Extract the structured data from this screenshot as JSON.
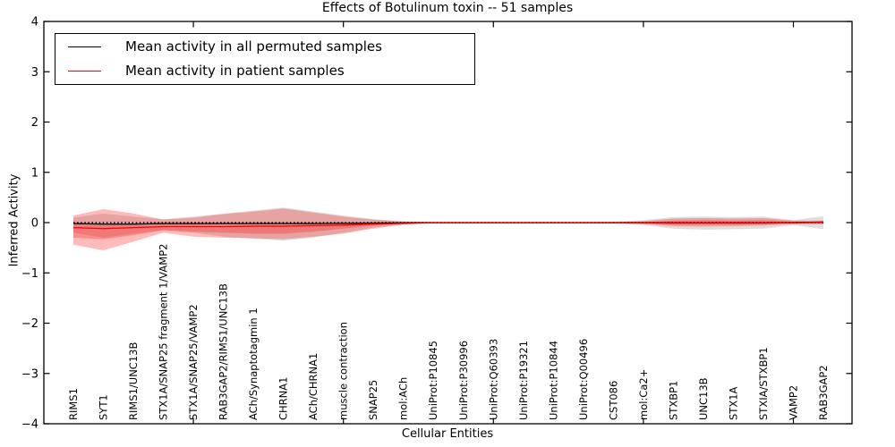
{
  "chart_data": {
    "type": "line",
    "title": "Effects of Botulinum toxin -- 51 samples",
    "xlabel": "Cellular Entities",
    "ylabel": "Inferred Activity",
    "ylim": [
      -4,
      4
    ],
    "yticks": [
      -4,
      -3,
      -2,
      -1,
      0,
      1,
      2,
      3,
      4
    ],
    "xtick_indices": [
      4,
      9,
      14,
      19,
      24
    ],
    "grid": false,
    "legend_position": "upper left",
    "background_color": "#ffffff",
    "frame_color": "#000000",
    "zero_reference_line": {
      "value": 0,
      "style": "dotted",
      "color": "#000000"
    },
    "categories": [
      "RIMS1",
      "SYT1",
      "RIMS1/UNC13B",
      "STX1A/SNAP25 fragment 1/VAMP2",
      "STX1A/SNAP25/VAMP2",
      "RAB3GAP2/RIMS1/UNC13B",
      "ACh/Synaptotagmin 1",
      "CHRNA1",
      "ACh/CHRNA1",
      "muscle contraction",
      "SNAP25",
      "mol:ACh",
      "UniProt:P10845",
      "UniProt:P30996",
      "UniProt:Q60393",
      "UniProt:P19321",
      "UniProt:P10844",
      "UniProt:Q00496",
      "CST086",
      "mol:Ca2+",
      "STXBP1",
      "UNC13B",
      "STX1A",
      "STXIA/STXBP1",
      "VAMP2",
      "RAB3GAP2"
    ],
    "series": [
      {
        "name": "Mean activity in all permuted samples",
        "color": "#000000",
        "values": [
          -0.02,
          -0.03,
          -0.03,
          -0.02,
          -0.02,
          -0.02,
          -0.02,
          -0.02,
          -0.02,
          -0.015,
          -0.01,
          -0.005,
          0,
          0,
          0,
          0,
          0,
          0,
          0,
          0,
          -0.005,
          -0.005,
          -0.005,
          -0.005,
          0,
          0.01
        ]
      },
      {
        "name": "Mean activity in patient samples",
        "color": "#ff0000",
        "values": [
          -0.1,
          -0.12,
          -0.1,
          -0.08,
          -0.08,
          -0.08,
          -0.07,
          -0.07,
          -0.06,
          -0.05,
          -0.03,
          -0.015,
          -0.005,
          -0.005,
          -0.005,
          -0.005,
          -0.005,
          -0.005,
          -0.005,
          -0.005,
          -0.01,
          -0.01,
          -0.01,
          -0.01,
          -0.005,
          0.01
        ]
      }
    ],
    "bands": [
      {
        "name": "permuted-samples-range",
        "color": "#000000",
        "opacity": 0.13,
        "upper": [
          0.1,
          0.18,
          0.12,
          0.07,
          0.12,
          0.18,
          0.24,
          0.3,
          0.22,
          0.14,
          0.07,
          0.03,
          0.01,
          0.01,
          0.01,
          0.01,
          0.01,
          0.01,
          0.015,
          0.05,
          0.11,
          0.12,
          0.11,
          0.12,
          0.05,
          0.13
        ],
        "lower": [
          -0.2,
          -0.3,
          -0.22,
          -0.15,
          -0.2,
          -0.28,
          -0.32,
          -0.36,
          -0.3,
          -0.2,
          -0.1,
          -0.04,
          -0.01,
          -0.01,
          -0.01,
          -0.01,
          -0.01,
          -0.01,
          -0.015,
          -0.05,
          -0.12,
          -0.14,
          -0.13,
          -0.12,
          -0.05,
          -0.13
        ]
      },
      {
        "name": "patient-samples-range-outer",
        "color": "#ff0000",
        "opacity": 0.27,
        "upper": [
          0.14,
          0.27,
          0.18,
          0.06,
          0.1,
          0.17,
          0.22,
          0.28,
          0.2,
          0.12,
          0.06,
          0.02,
          0.008,
          0.008,
          0.008,
          0.008,
          0.008,
          0.008,
          0.01,
          0.03,
          0.08,
          0.09,
          0.08,
          0.09,
          0.04,
          0.04
        ],
        "lower": [
          -0.44,
          -0.47,
          -0.38,
          -0.2,
          -0.28,
          -0.3,
          -0.31,
          -0.33,
          -0.28,
          -0.22,
          -0.12,
          -0.04,
          -0.008,
          -0.008,
          -0.008,
          -0.008,
          -0.008,
          -0.008,
          -0.01,
          -0.03,
          -0.07,
          -0.08,
          -0.07,
          -0.06,
          -0.03,
          -0.03
        ],
        "lower_extreme": [
          -0.44,
          -0.55,
          -0.38,
          -0.2,
          -0.28,
          -0.3,
          -0.31,
          -0.33,
          -0.28,
          -0.22,
          -0.12,
          -0.04,
          -0.008,
          -0.008,
          -0.008,
          -0.008,
          -0.008,
          -0.008,
          -0.01,
          -0.03,
          -0.07,
          -0.08,
          -0.07,
          -0.06,
          -0.03,
          -0.03
        ]
      },
      {
        "name": "patient-samples-range-inner",
        "color": "#ff0000",
        "opacity": 0.25,
        "upper": [
          -0.04,
          -0.05,
          -0.05,
          -0.04,
          -0.04,
          -0.05,
          -0.05,
          -0.05,
          -0.04,
          -0.03,
          -0.02,
          -0.01,
          0,
          0,
          0,
          0,
          0,
          0,
          0,
          0.01,
          0.04,
          0.05,
          0.04,
          0.05,
          0.02,
          0.02
        ],
        "lower": [
          -0.3,
          -0.33,
          -0.25,
          -0.15,
          -0.18,
          -0.2,
          -0.22,
          -0.22,
          -0.18,
          -0.12,
          -0.06,
          -0.02,
          0,
          0,
          0,
          0,
          0,
          0,
          0,
          -0.02,
          -0.04,
          -0.04,
          -0.04,
          -0.03,
          -0.01,
          -0.02
        ]
      }
    ]
  }
}
